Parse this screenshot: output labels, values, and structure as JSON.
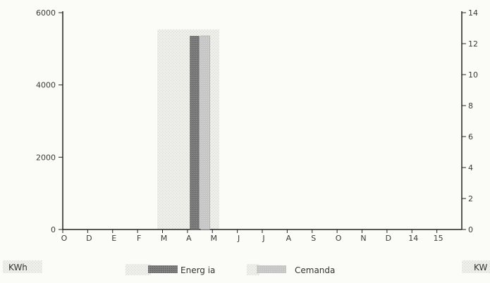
{
  "chart_data": {
    "type": "bar",
    "categories": [
      "O",
      "D",
      "E",
      "F",
      "M",
      "A",
      "M",
      "J",
      "J",
      "A",
      "S",
      "O",
      "N",
      "D",
      "14",
      "15"
    ],
    "series": [
      {
        "name": "Energia",
        "label": "Energ ia",
        "axis": "left",
        "color": "#777777",
        "values": [
          0,
          0,
          0,
          0,
          0,
          5350,
          0,
          0,
          0,
          0,
          0,
          0,
          0,
          0,
          0,
          0
        ]
      },
      {
        "name": "Demanda",
        "label": "Cemanda",
        "axis": "right",
        "color": "#c4c4c4",
        "values": [
          0,
          0,
          0,
          0,
          0,
          12.5,
          0,
          0,
          0,
          0,
          0,
          0,
          0,
          0,
          0,
          0
        ]
      }
    ],
    "y_left": {
      "ticks": [
        0,
        2000,
        4000,
        6000
      ],
      "tick_labels": [
        "0",
        "2000",
        "4000",
        "6000"
      ],
      "ylim": [
        0,
        6000
      ],
      "unit": "KWh"
    },
    "y_right": {
      "ticks": [
        0,
        2,
        4,
        6,
        8,
        10,
        12,
        14
      ],
      "tick_labels": [
        "0",
        "2",
        "4",
        "6",
        "8",
        "10",
        "12",
        "14"
      ],
      "ylim": [
        0,
        14
      ],
      "unit": "KW"
    },
    "grid": false,
    "legend_position": "bottom-center",
    "title": "",
    "xlabel": ""
  }
}
